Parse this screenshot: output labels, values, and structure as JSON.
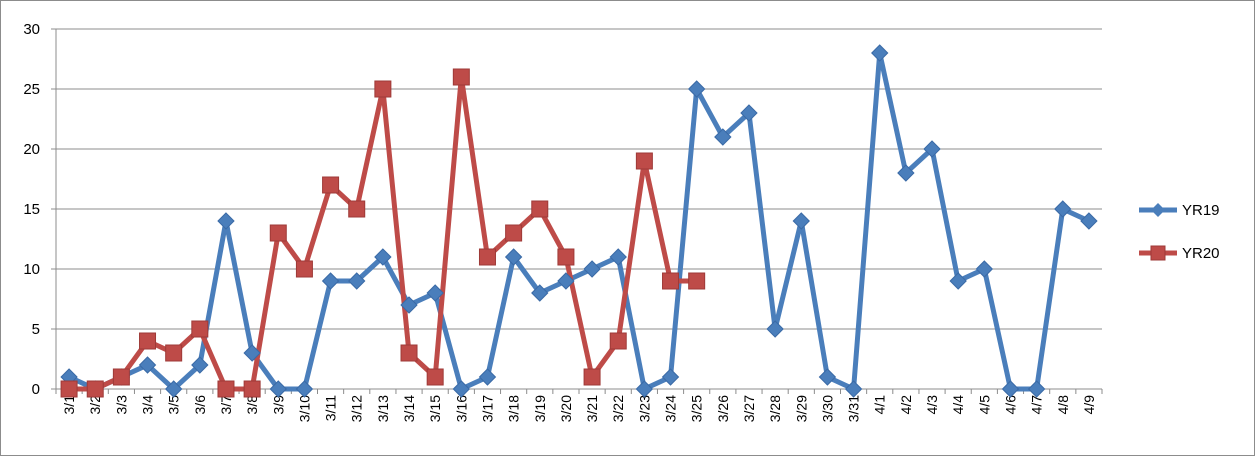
{
  "chart_data": {
    "type": "line",
    "title": "",
    "xlabel": "",
    "ylabel": "",
    "ylim": [
      0,
      30
    ],
    "yticks": [
      "0",
      "5",
      "10",
      "15",
      "20",
      "25",
      "30"
    ],
    "grid": "horizontal",
    "legend_position": "right",
    "categories": [
      "3/1",
      "3/2",
      "3/3",
      "3/4",
      "3/5",
      "3/6",
      "3/7",
      "3/8",
      "3/9",
      "3/10",
      "3/11",
      "3/12",
      "3/13",
      "3/14",
      "3/15",
      "3/16",
      "3/17",
      "3/18",
      "3/19",
      "3/20",
      "3/21",
      "3/22",
      "3/23",
      "3/24",
      "3/25",
      "3/26",
      "3/27",
      "3/28",
      "3/29",
      "3/30",
      "3/31",
      "4/1",
      "4/2",
      "4/3",
      "4/4",
      "4/5",
      "4/6",
      "4/7",
      "4/8",
      "4/9"
    ],
    "series": [
      {
        "name": "YR19",
        "color": "#4a7ebb",
        "marker": "diamond",
        "values": [
          1,
          0,
          1,
          2,
          0,
          2,
          14,
          3,
          0,
          0,
          9,
          9,
          11,
          7,
          8,
          0,
          1,
          11,
          8,
          9,
          10,
          11,
          0,
          1,
          25,
          21,
          23,
          5,
          14,
          1,
          0,
          28,
          18,
          20,
          9,
          10,
          0,
          0,
          15,
          14
        ]
      },
      {
        "name": "YR20",
        "color": "#be4b48",
        "marker": "square",
        "values": [
          0,
          0,
          1,
          4,
          3,
          5,
          0,
          0,
          13,
          10,
          17,
          15,
          25,
          3,
          1,
          26,
          11,
          13,
          15,
          11,
          1,
          4,
          19,
          9,
          9,
          null,
          null,
          null,
          null,
          null,
          null,
          null,
          null,
          null,
          null,
          null,
          null,
          null,
          null,
          null
        ]
      }
    ]
  }
}
